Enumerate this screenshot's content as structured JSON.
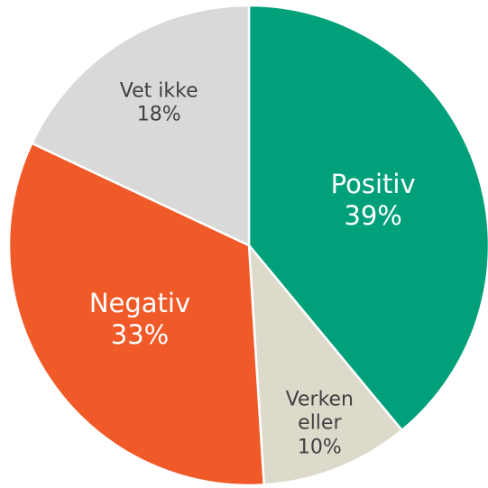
{
  "chart_data": {
    "type": "pie",
    "categories": [
      "Positiv",
      "Verken eller",
      "Negativ",
      "Vet ikke"
    ],
    "values": [
      39,
      10,
      33,
      18
    ],
    "value_labels": [
      "39%",
      "10%",
      "33%",
      "18%"
    ],
    "colors": [
      "#00a07a",
      "#dddacb",
      "#f05a28",
      "#d9d9d9"
    ]
  }
}
